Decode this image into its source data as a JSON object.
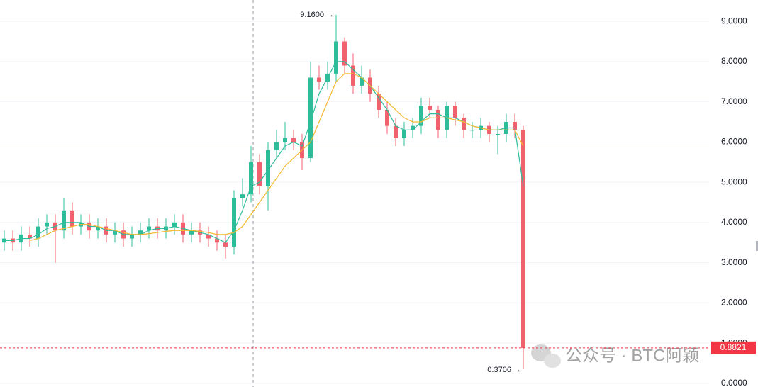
{
  "chart_data": {
    "type": "candlestick",
    "up_color": "#2ebd9b",
    "down_color": "#f0616d",
    "open": [
      3.5,
      3.6,
      3.5,
      3.7,
      3.6,
      3.9,
      4.0,
      3.8,
      4.3,
      3.9,
      4.0,
      3.8,
      3.9,
      3.7,
      3.8,
      3.6,
      3.7,
      3.8,
      3.9,
      3.8,
      3.9,
      4.0,
      3.7,
      3.8,
      3.7,
      3.6,
      3.5,
      3.4,
      4.6,
      4.7,
      5.5,
      4.9,
      5.8,
      6.0,
      6.1,
      6.0,
      5.6,
      7.6,
      7.5,
      7.7,
      8.5,
      7.9,
      7.4,
      7.6,
      7.2,
      6.8,
      6.4,
      6.1,
      6.3,
      6.4,
      6.9,
      6.8,
      6.3,
      6.9,
      6.6,
      6.3,
      6.3,
      6.4,
      6.2,
      6.2,
      6.5,
      6.3
    ],
    "high": [
      3.8,
      3.8,
      3.9,
      3.9,
      4.1,
      4.2,
      4.2,
      4.6,
      4.5,
      4.2,
      4.2,
      4.1,
      4.1,
      4.0,
      4.0,
      3.9,
      4.0,
      4.1,
      4.1,
      4.1,
      4.2,
      4.2,
      4.0,
      4.0,
      3.9,
      3.8,
      3.7,
      4.8,
      5.1,
      5.9,
      5.7,
      6.0,
      6.3,
      6.5,
      6.3,
      6.2,
      8.0,
      7.9,
      8.0,
      9.16,
      8.6,
      8.2,
      7.9,
      7.8,
      7.4,
      7.0,
      6.6,
      6.5,
      6.6,
      7.1,
      7.1,
      6.9,
      7.0,
      7.0,
      6.7,
      6.5,
      6.6,
      6.5,
      6.4,
      6.7,
      6.7,
      6.4
    ],
    "low": [
      3.3,
      3.3,
      3.3,
      3.4,
      3.4,
      3.7,
      3.0,
      3.6,
      3.7,
      3.7,
      3.6,
      3.6,
      3.5,
      3.5,
      3.4,
      3.4,
      3.5,
      3.6,
      3.6,
      3.6,
      3.7,
      3.5,
      3.5,
      3.5,
      3.4,
      3.3,
      3.1,
      3.2,
      4.4,
      4.5,
      4.7,
      4.3,
      5.6,
      5.8,
      5.8,
      5.3,
      5.5,
      7.3,
      7.3,
      7.5,
      7.7,
      7.2,
      7.2,
      7.0,
      6.6,
      6.2,
      5.9,
      5.9,
      6.1,
      6.2,
      6.6,
      6.1,
      6.1,
      6.4,
      6.1,
      6.1,
      6.1,
      6.0,
      5.7,
      6.0,
      6.1,
      0.37
    ],
    "close": [
      3.6,
      3.5,
      3.7,
      3.6,
      3.9,
      4.0,
      3.8,
      4.3,
      3.9,
      4.0,
      3.8,
      3.9,
      3.7,
      3.8,
      3.6,
      3.7,
      3.8,
      3.9,
      3.8,
      3.9,
      4.0,
      3.7,
      3.8,
      3.7,
      3.6,
      3.5,
      3.4,
      4.6,
      4.7,
      5.5,
      4.9,
      5.8,
      6.0,
      6.1,
      6.0,
      5.6,
      7.6,
      7.5,
      7.7,
      8.5,
      7.9,
      7.4,
      7.6,
      7.2,
      6.8,
      6.4,
      6.1,
      6.3,
      6.4,
      6.9,
      6.8,
      6.3,
      6.9,
      6.6,
      6.3,
      6.3,
      6.4,
      6.2,
      6.2,
      6.5,
      6.3,
      0.88
    ],
    "lines": [
      {
        "color": "#2ebd9b",
        "values": [
          3.55,
          3.55,
          3.6,
          3.6,
          3.7,
          3.85,
          3.9,
          4.0,
          4.0,
          4.0,
          3.9,
          3.9,
          3.8,
          3.8,
          3.7,
          3.7,
          3.7,
          3.8,
          3.85,
          3.85,
          3.9,
          3.85,
          3.8,
          3.75,
          3.7,
          3.6,
          3.5,
          3.8,
          4.3,
          4.9,
          5.0,
          5.3,
          5.6,
          5.9,
          6.0,
          5.9,
          6.5,
          7.2,
          7.6,
          8.0,
          8.0,
          7.8,
          7.6,
          7.4,
          7.1,
          6.8,
          6.4,
          6.3,
          6.3,
          6.5,
          6.7,
          6.7,
          6.6,
          6.6,
          6.5,
          6.4,
          6.35,
          6.3,
          6.3,
          6.35,
          6.35,
          4.9
        ]
      },
      {
        "color": "#f5b82e",
        "values": [
          null,
          null,
          null,
          3.55,
          3.6,
          3.7,
          3.8,
          3.85,
          3.9,
          3.95,
          3.95,
          3.9,
          3.85,
          3.8,
          3.75,
          3.7,
          3.7,
          3.72,
          3.75,
          3.78,
          3.8,
          3.8,
          3.8,
          3.78,
          3.75,
          3.7,
          3.7,
          3.75,
          3.9,
          4.2,
          4.5,
          4.8,
          5.1,
          5.4,
          5.6,
          5.8,
          6.0,
          6.5,
          7.0,
          7.5,
          7.7,
          7.7,
          7.6,
          7.4,
          7.2,
          7.0,
          6.8,
          6.6,
          6.5,
          6.5,
          6.6,
          6.6,
          6.6,
          6.55,
          6.5,
          6.4,
          6.35,
          6.3,
          6.3,
          6.3,
          6.3,
          5.9
        ]
      }
    ],
    "ylim": [
      -0.09,
      9.53
    ],
    "yticks": [
      {
        "value": 0,
        "label": "0.0000"
      },
      {
        "value": 1,
        "label": "1.0000"
      },
      {
        "value": 2,
        "label": "2.0000"
      },
      {
        "value": 3,
        "label": "3.0000"
      },
      {
        "value": 4,
        "label": "4.0000"
      },
      {
        "value": 5,
        "label": "5.0000"
      },
      {
        "value": 6,
        "label": "6.0000"
      },
      {
        "value": 7,
        "label": "7.0000"
      },
      {
        "value": 8,
        "label": "8.0000"
      },
      {
        "value": 9,
        "label": "9.0000"
      }
    ],
    "grid": true,
    "high_marker": "9.1600 →",
    "low_marker": "0.3706 →",
    "last_price": {
      "value": 0.8821,
      "label": "0.8821",
      "color": "#f23645"
    },
    "watermark": "公众号 · BTC阿颖"
  }
}
